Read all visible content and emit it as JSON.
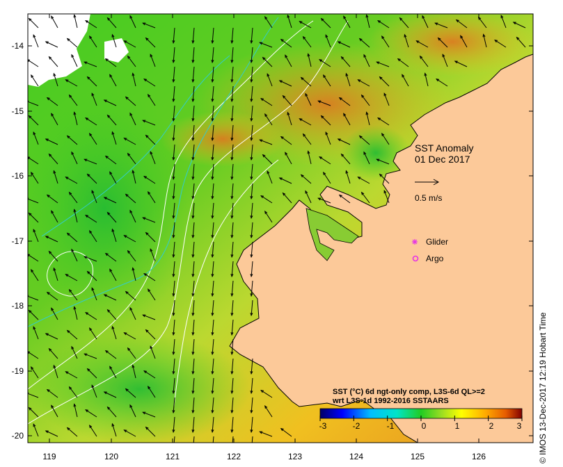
{
  "map": {
    "title_line1": "SST Anomaly",
    "title_line2": "01 Dec 2017",
    "vector_scale_label": "0.5 m/s",
    "legend": {
      "glider_label": "Glider",
      "argo_label": "Argo",
      "glider_color": "#e632e6",
      "argo_color": "#e632e6"
    },
    "colorbar": {
      "title_line1": "SST (°C) 6d ngt-only comp, L3S-6d QL>=2",
      "title_line2": "wrt L3S-1d 1992-2016 SSTAARS",
      "ticks": [
        "-3",
        "-2",
        "-1",
        "0",
        "1",
        "2",
        "3"
      ],
      "stops": [
        "#000066",
        "#0000ff",
        "#00bfff",
        "#00e5c8",
        "#22cc22",
        "#99dd22",
        "#ffff00",
        "#ffaa00",
        "#e65c00",
        "#800000"
      ]
    },
    "axes": {
      "x_ticks": [
        "119",
        "120",
        "121",
        "122",
        "123",
        "124",
        "125",
        "126"
      ],
      "y_ticks": [
        "-14",
        "-15",
        "-16",
        "-17",
        "-18",
        "-19",
        "-20"
      ],
      "lon_range": [
        118.6,
        126.7
      ],
      "lat_range": [
        -20.1,
        -13.5
      ]
    },
    "credit": "© IMOS 13-Dec-2017 12:19 Hobart Time",
    "colors": {
      "land": "#fcc999",
      "frame": "#000000",
      "coast": "#000000",
      "contour_white": "#ffffff",
      "contour_cyan": "#33cccc"
    }
  }
}
